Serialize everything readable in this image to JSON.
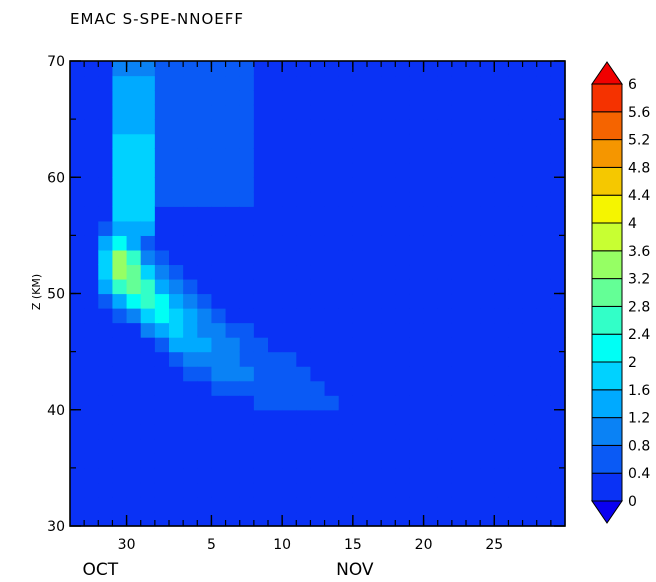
{
  "chart_data": {
    "type": "heatmap",
    "title": "EMAC S-SPE-NNOEFF",
    "ylabel": "Z (KM)",
    "xlabel": "",
    "xlim_days": [
      0,
      35
    ],
    "ylim": [
      30,
      70
    ],
    "x_ticks": [
      {
        "pos": 4,
        "label": "30"
      },
      {
        "pos": 10,
        "label": "5"
      },
      {
        "pos": 15,
        "label": "10"
      },
      {
        "pos": 20,
        "label": "15"
      },
      {
        "pos": 25,
        "label": "20"
      },
      {
        "pos": 30,
        "label": "25"
      }
    ],
    "x_minor_every": 1,
    "month_labels": [
      {
        "pos": 2,
        "label": "OCT"
      },
      {
        "pos": 20,
        "label": "NOV"
      }
    ],
    "y_ticks": [
      30,
      40,
      50,
      60,
      70
    ],
    "y_minor_every": 5,
    "colorbar": {
      "levels": [
        0,
        0.4,
        0.8,
        1.2,
        1.6,
        2,
        2.4,
        2.8,
        3.2,
        3.6,
        4,
        4.4,
        4.8,
        5.2,
        5.6,
        6
      ],
      "labels": [
        "0",
        "0.4",
        "0.8",
        "1.2",
        "1.6",
        "2",
        "2.4",
        "2.8",
        "3.2",
        "3.6",
        "4",
        "4.4",
        "4.8",
        "5.2",
        "5.6",
        "6"
      ],
      "colors": [
        "#0a00f0",
        "#0a32f5",
        "#0a5af5",
        "#0a82f5",
        "#00aaff",
        "#00d2ff",
        "#00fff5",
        "#32ffc8",
        "#64ff96",
        "#96ff64",
        "#c8ff32",
        "#f5f500",
        "#f5c800",
        "#f59600",
        "#f56400",
        "#f53200",
        "#f00000"
      ]
    },
    "grid": false,
    "peak": {
      "day": 4,
      "z": 52.5,
      "value": 3.4
    }
  }
}
